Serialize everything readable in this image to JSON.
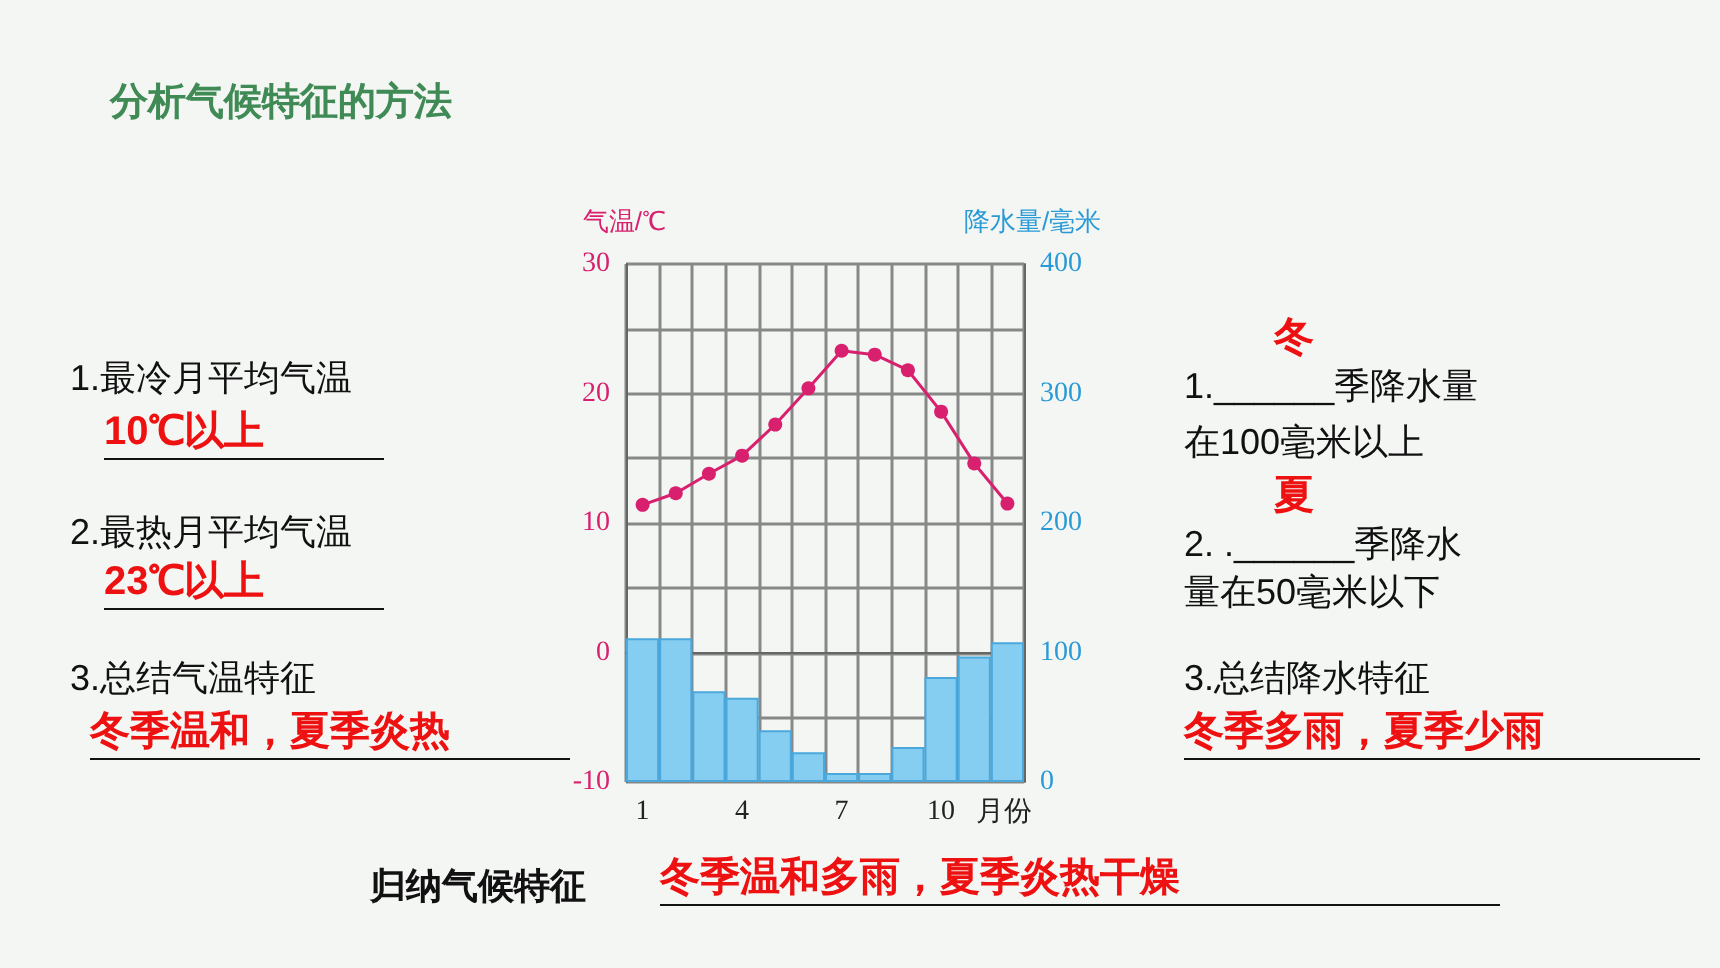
{
  "chart_data": {
    "type": "bar",
    "title": "分析气候特征的方法",
    "xlabel": "月份",
    "ylabel": "气温/℃",
    "y2label": "降水量/毫米",
    "categories": [
      "1",
      null,
      null,
      "4",
      null,
      null,
      "7",
      null,
      null,
      "10",
      null,
      null
    ],
    "series": [
      {
        "axis": "y2",
        "color": "#86cdf2",
        "values": [
          111,
          111,
          70,
          65,
          40,
          23,
          7,
          7,
          27,
          81,
          97,
          108
        ]
      },
      {
        "type": "line",
        "color": "#d8206e",
        "values": [
          11.4,
          12.3,
          13.8,
          15.2,
          17.6,
          20.4,
          23.3,
          23.0,
          21.8,
          18.6,
          14.6,
          11.5
        ]
      }
    ],
    "ylim": [
      -10,
      30
    ],
    "yticks": [
      -10,
      {
        "value": -5,
        "label": null
      },
      0,
      {
        "value": 5,
        "label": null
      },
      10,
      {
        "value": 15,
        "label": null
      },
      20,
      {
        "value": 25,
        "label": null
      },
      30
    ],
    "y2lim": [
      0,
      400
    ],
    "y2ticks": [
      0,
      100,
      200,
      300,
      400
    ],
    "grid": true,
    "marker": "circle",
    "line_style": "solid",
    "annotations": [
      "1.最冷月平均气温",
      "10℃以上",
      "2.最热月平均气温",
      "23℃以上",
      "3.总结气温特征",
      "冬季温和，夏季炎热",
      "1.______季降水量",
      "冬",
      "在100毫米以上",
      "2. .______季降水",
      "夏",
      "量在50毫米以下",
      "3.总结降水特征",
      "冬季多雨，夏季少雨",
      "归纳气候特征",
      "冬季温和多雨，夏季炎热干燥"
    ]
  }
}
